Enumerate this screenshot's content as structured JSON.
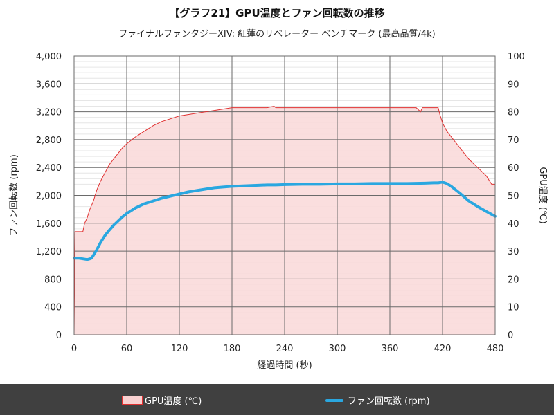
{
  "title": "【グラフ21】GPU温度とファン回転数の推移",
  "subtitle": "ファイナルファンタジーXIV: 紅蓮のリベレーター ベンチマーク (最高品質/4k)",
  "legend": {
    "temp": "GPU温度 (℃)",
    "fan": "ファン回転数 (rpm)"
  },
  "colors": {
    "temp_line": "#e03030",
    "temp_fill": "#fadada",
    "fan_line": "#2aa7e0"
  },
  "chart_data": {
    "type": "line",
    "xlabel": "経過時間 (秒)",
    "ylabel": "ファン回転数 (rpm)",
    "y2label": "GPU温度 (℃)",
    "xlim": [
      0,
      480
    ],
    "ylim": [
      0,
      4000
    ],
    "y2lim": [
      0,
      100
    ],
    "x_ticks": [
      "0",
      "60",
      "120",
      "180",
      "240",
      "300",
      "360",
      "420",
      "480"
    ],
    "y_ticks": [
      "0",
      "400",
      "800",
      "1,200",
      "1,600",
      "2,000",
      "2,400",
      "2,800",
      "3,200",
      "3,600",
      "4,000"
    ],
    "y2_ticks": [
      "0",
      "10",
      "20",
      "30",
      "40",
      "50",
      "60",
      "70",
      "80",
      "90",
      "100"
    ],
    "grid": true,
    "series": [
      {
        "name": "GPU温度 (℃)",
        "axis": "right",
        "style": "area",
        "x": [
          0,
          1,
          10,
          12,
          15,
          18,
          22,
          26,
          30,
          35,
          40,
          45,
          50,
          55,
          60,
          70,
          80,
          90,
          100,
          110,
          120,
          130,
          140,
          150,
          160,
          170,
          180,
          190,
          200,
          210,
          220,
          228,
          230,
          240,
          250,
          260,
          270,
          280,
          290,
          300,
          310,
          320,
          330,
          340,
          350,
          360,
          370,
          380,
          390,
          395,
          397,
          400,
          410,
          415,
          417,
          420,
          425,
          430,
          440,
          450,
          460,
          470,
          476,
          480
        ],
        "y": [
          0,
          37,
          37,
          40,
          42,
          45,
          48,
          52,
          55,
          58,
          61,
          63,
          65,
          67,
          68.5,
          71,
          73,
          75,
          76.5,
          77.5,
          78.5,
          79,
          79.5,
          80,
          80.5,
          81,
          81.5,
          81.5,
          81.5,
          81.5,
          81.5,
          82,
          81.5,
          81.5,
          81.5,
          81.5,
          81.5,
          81.5,
          81.5,
          81.5,
          81.5,
          81.5,
          81.5,
          81.5,
          81.5,
          81.5,
          81.5,
          81.5,
          81.5,
          80,
          81.5,
          81.5,
          81.5,
          81.5,
          79,
          76,
          73,
          71,
          67,
          63,
          60,
          57,
          54,
          54
        ]
      },
      {
        "name": "ファン回転数 (rpm)",
        "axis": "left",
        "style": "line",
        "x": [
          0,
          5,
          10,
          15,
          18,
          20,
          25,
          30,
          35,
          40,
          45,
          50,
          55,
          60,
          70,
          80,
          90,
          100,
          110,
          120,
          130,
          140,
          150,
          160,
          170,
          180,
          190,
          200,
          210,
          220,
          230,
          240,
          260,
          280,
          300,
          320,
          340,
          360,
          380,
          400,
          410,
          415,
          420,
          425,
          430,
          440,
          450,
          460,
          470,
          480
        ],
        "y": [
          1100,
          1100,
          1090,
          1080,
          1090,
          1100,
          1200,
          1320,
          1420,
          1500,
          1570,
          1630,
          1690,
          1740,
          1820,
          1880,
          1920,
          1960,
          1990,
          2020,
          2050,
          2070,
          2090,
          2110,
          2120,
          2130,
          2135,
          2140,
          2145,
          2150,
          2150,
          2155,
          2160,
          2160,
          2165,
          2165,
          2170,
          2170,
          2170,
          2175,
          2180,
          2180,
          2190,
          2170,
          2130,
          2030,
          1920,
          1840,
          1770,
          1700
        ]
      }
    ]
  }
}
